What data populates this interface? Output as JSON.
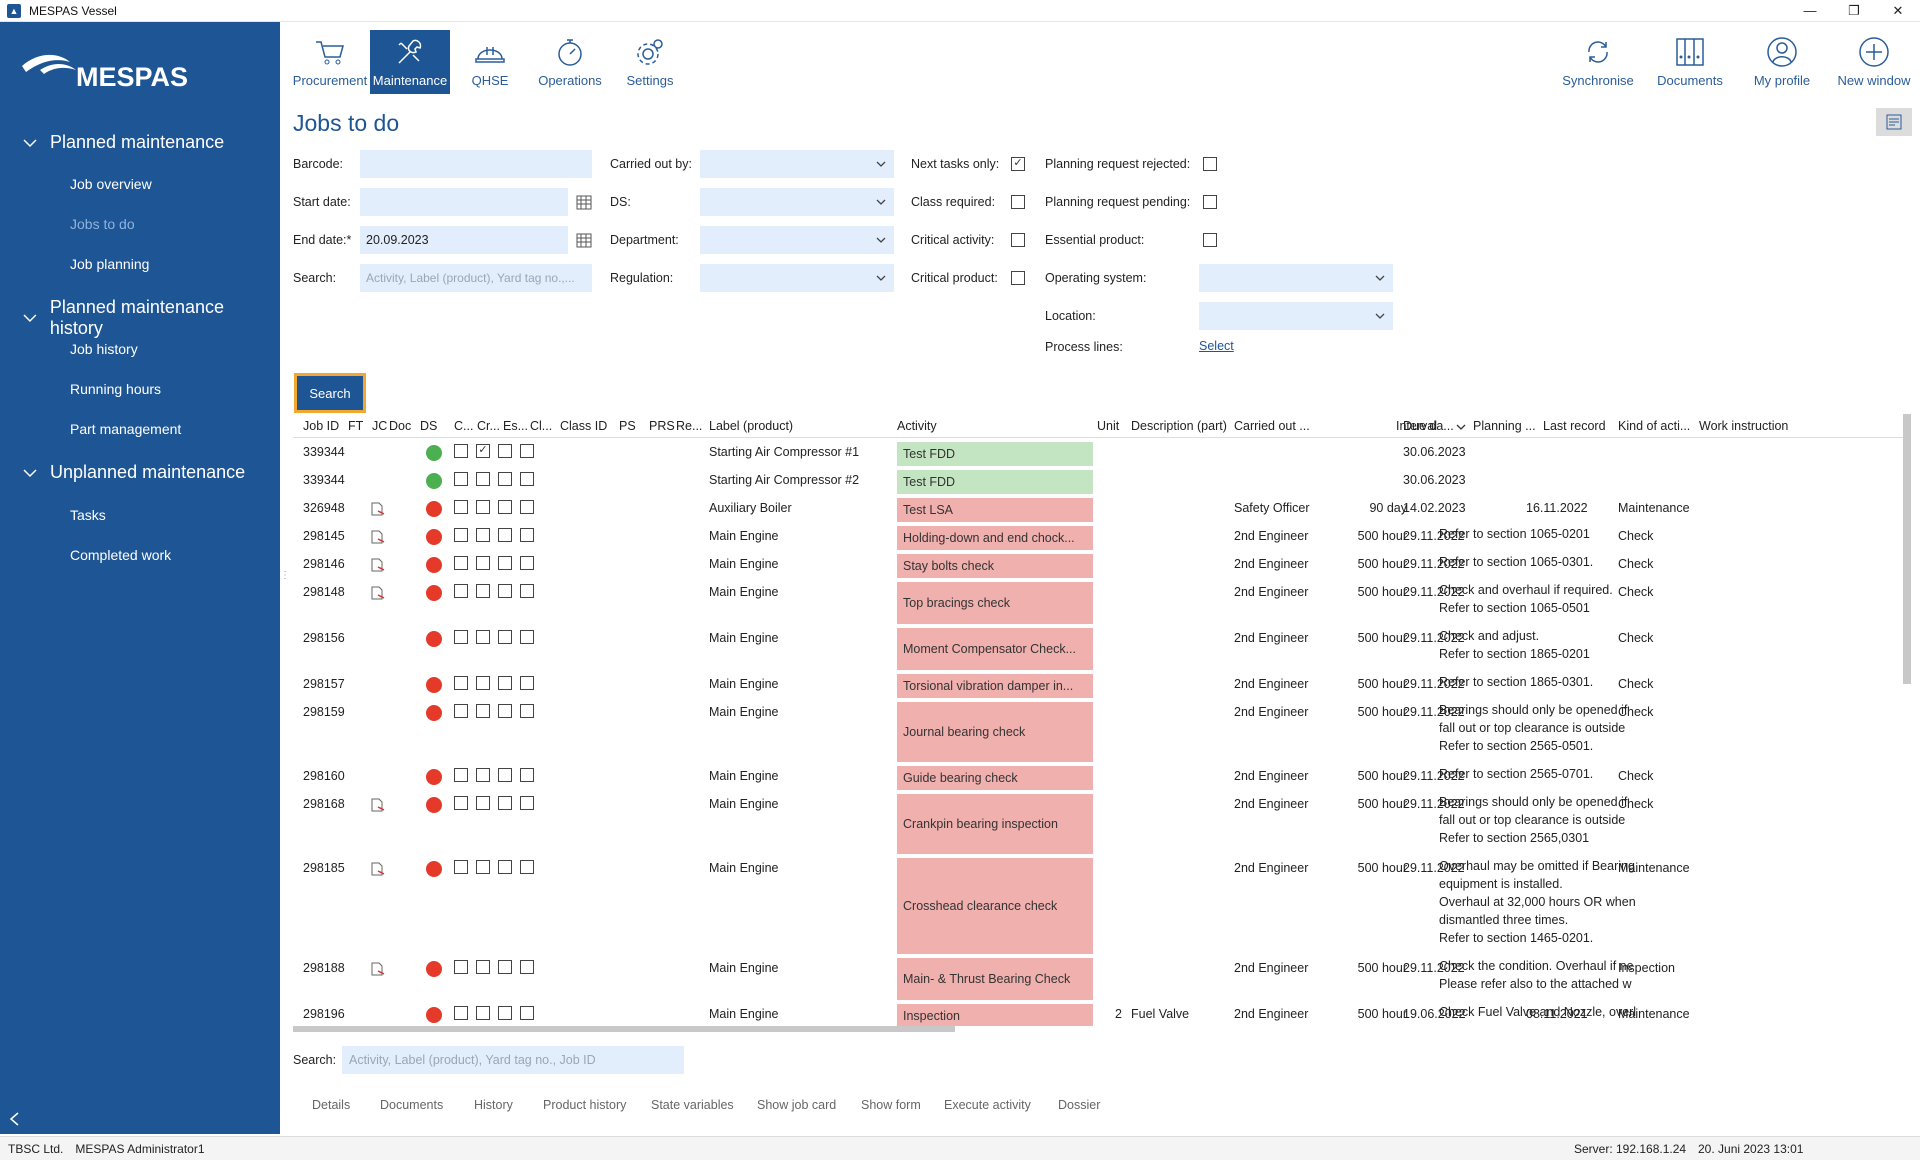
{
  "window": {
    "title": "MESPAS Vessel",
    "controls": [
      "—",
      "❐",
      "✕"
    ]
  },
  "sidebar": {
    "brand": "MESPAS",
    "sections": [
      {
        "label": "Planned maintenance",
        "items": [
          "Job overview",
          "Jobs to do",
          "Job planning"
        ]
      },
      {
        "label": "Planned maintenance history",
        "items": [
          "Job history",
          "Running hours",
          "Part management"
        ]
      },
      {
        "label": "Unplanned maintenance",
        "items": [
          "Tasks",
          "Completed work"
        ]
      }
    ],
    "active_item": "Jobs to do"
  },
  "topnav": {
    "left": [
      {
        "label": "Procurement",
        "icon": "cart-icon"
      },
      {
        "label": "Maintenance",
        "icon": "wrench-icon",
        "active": true
      },
      {
        "label": "QHSE",
        "icon": "helmet-icon"
      },
      {
        "label": "Operations",
        "icon": "stopwatch-icon"
      },
      {
        "label": "Settings",
        "icon": "gear-icon"
      }
    ],
    "right": [
      {
        "label": "Synchronise",
        "icon": "sync-icon"
      },
      {
        "label": "Documents",
        "icon": "binders-icon"
      },
      {
        "label": "My profile",
        "icon": "user-icon"
      },
      {
        "label": "New window",
        "icon": "plus-circle-icon"
      }
    ]
  },
  "page": {
    "title": "Jobs to do"
  },
  "filters": {
    "barcode_label": "Barcode:",
    "start_date_label": "Start date:",
    "end_date_label": "End date:*",
    "end_date_value": "20.09.2023",
    "search_label": "Search:",
    "search_placeholder": "Activity, Label (product), Yard tag no.,...",
    "carried_out_by_label": "Carried out by:",
    "ds_label": "DS:",
    "department_label": "Department:",
    "regulation_label": "Regulation:",
    "next_tasks_only_label": "Next tasks only:",
    "class_required_label": "Class required:",
    "critical_activity_label": "Critical activity:",
    "critical_product_label": "Critical product:",
    "planning_request_rejected_label": "Planning request rejected:",
    "planning_request_pending_label": "Planning request pending:",
    "essential_product_label": "Essential product:",
    "operating_system_label": "Operating system:",
    "location_label": "Location:",
    "process_lines_label": "Process lines:",
    "process_lines_link": "Select",
    "search_button": "Search",
    "next_tasks_only_checked": true
  },
  "grid": {
    "headers": [
      "Job ID",
      "FT",
      "JC",
      "Doc",
      "DS",
      "C...",
      "Cr...",
      "Es...",
      "Cl...",
      "Class ID",
      "PS",
      "PRS",
      "Re...",
      "Label (product)",
      "Activity",
      "Unit",
      "Description (part)",
      "Carried out ...",
      "Interval",
      "Due da...",
      "Planning ...",
      "Last record",
      "Kind of acti...",
      "Work instruction"
    ],
    "rows": [
      {
        "job_id": "339344",
        "doc": false,
        "ds": "green",
        "cr": true,
        "label": "Starting Air Compressor #1",
        "activity": "Test FDD",
        "act_color": "green",
        "unit": "",
        "part": "",
        "carried": "",
        "interval": "",
        "due": "30.06.2023",
        "last": "",
        "kind": "",
        "wi": ""
      },
      {
        "job_id": "339344",
        "doc": false,
        "ds": "green",
        "cr": false,
        "label": "Starting Air Compressor #2",
        "activity": "Test FDD",
        "act_color": "green",
        "unit": "",
        "part": "",
        "carried": "",
        "interval": "",
        "due": "30.06.2023",
        "last": "",
        "kind": "",
        "wi": ""
      },
      {
        "job_id": "326948",
        "doc": true,
        "ds": "red",
        "cr": false,
        "label": "Auxiliary Boiler",
        "activity": "Test LSA",
        "act_color": "red",
        "unit": "",
        "part": "",
        "carried": "Safety Officer",
        "interval": "90 day",
        "due": "14.02.2023",
        "last": "16.11.2022",
        "kind": "Maintenance",
        "wi": ""
      },
      {
        "job_id": "298145",
        "doc": true,
        "ds": "red",
        "cr": false,
        "label": "Main Engine",
        "activity": "Holding-down and end chock...",
        "act_color": "red",
        "unit": "",
        "part": "",
        "carried": "2nd Engineer",
        "interval": "500 hour",
        "due": "29.11.2022",
        "last": "",
        "kind": "Check",
        "wi": "Refer to section 1065-0201"
      },
      {
        "job_id": "298146",
        "doc": true,
        "ds": "red",
        "cr": false,
        "label": "Main Engine",
        "activity": "Stay bolts check",
        "act_color": "red",
        "unit": "",
        "part": "",
        "carried": "2nd Engineer",
        "interval": "500 hour",
        "due": "29.11.2022",
        "last": "",
        "kind": "Check",
        "wi": "Refer to section 1065-0301."
      },
      {
        "job_id": "298148",
        "doc": true,
        "ds": "red",
        "cr": false,
        "label": "Main Engine",
        "activity": "Top bracings check",
        "act_color": "red",
        "unit": "",
        "part": "",
        "carried": "2nd Engineer",
        "interval": "500 hour",
        "due": "29.11.2022",
        "last": "",
        "kind": "Check",
        "wi": "Check and overhaul if required.\nRefer to section 1065-0501"
      },
      {
        "job_id": "298156",
        "doc": false,
        "ds": "red",
        "cr": false,
        "label": "Main Engine",
        "activity": "Moment Compensator Check...",
        "act_color": "red",
        "unit": "",
        "part": "",
        "carried": "2nd Engineer",
        "interval": "500 hour",
        "due": "29.11.2022",
        "last": "",
        "kind": "Check",
        "wi": "Check and adjust.\nRefer to section 1865-0201"
      },
      {
        "job_id": "298157",
        "doc": false,
        "ds": "red",
        "cr": false,
        "label": "Main Engine",
        "activity": "Torsional vibration damper in...",
        "act_color": "red",
        "unit": "",
        "part": "",
        "carried": "2nd Engineer",
        "interval": "500 hour",
        "due": "29.11.2022",
        "last": "",
        "kind": "Check",
        "wi": "Refer to section 1865-0301."
      },
      {
        "job_id": "298159",
        "doc": false,
        "ds": "red",
        "cr": false,
        "label": "Main Engine",
        "activity": "Journal bearing check",
        "act_color": "red",
        "unit": "",
        "part": "",
        "carried": "2nd Engineer",
        "interval": "500 hour",
        "due": "29.11.2022",
        "last": "",
        "kind": "Check",
        "wi": "Bearings should only be opened if\nfall out or top clearance is outside\nRefer to section 2565-0501."
      },
      {
        "job_id": "298160",
        "doc": false,
        "ds": "red",
        "cr": false,
        "label": "Main Engine",
        "activity": "Guide bearing check",
        "act_color": "red",
        "unit": "",
        "part": "",
        "carried": "2nd Engineer",
        "interval": "500 hour",
        "due": "29.11.2022",
        "last": "",
        "kind": "Check",
        "wi": "Refer to section 2565-0701."
      },
      {
        "job_id": "298168",
        "doc": true,
        "ds": "red",
        "cr": false,
        "label": "Main Engine",
        "activity": "Crankpin bearing inspection",
        "act_color": "red",
        "unit": "",
        "part": "",
        "carried": "2nd Engineer",
        "interval": "500 hour",
        "due": "29.11.2022",
        "last": "",
        "kind": "Check",
        "wi": "Bearings should only be opened if\nfall out or top clearance is outside\nRefer to section 2565,0301"
      },
      {
        "job_id": "298185",
        "doc": true,
        "ds": "red",
        "cr": false,
        "label": "Main Engine",
        "activity": "Crosshead clearance check",
        "act_color": "red",
        "unit": "",
        "part": "",
        "carried": "2nd Engineer",
        "interval": "500 hour",
        "due": "29.11.2022",
        "last": "",
        "kind": "Maintenance",
        "wi": "Overhaul may be omitted if Bearing\nequipment is installed.\nOverhaul at 32,000 hours OR when\ndismantled three times.\nRefer to section 1465-0201."
      },
      {
        "job_id": "298188",
        "doc": true,
        "ds": "red",
        "cr": false,
        "label": "Main Engine",
        "activity": "Main- & Thrust Bearing Check",
        "act_color": "red",
        "unit": "",
        "part": "",
        "carried": "2nd Engineer",
        "interval": "500 hour",
        "due": "29.11.2022",
        "last": "",
        "kind": "Inspection",
        "wi": "Check the condition. Overhaul if ne\nPlease refer also to the attached w"
      },
      {
        "job_id": "298196",
        "doc": false,
        "ds": "red",
        "cr": false,
        "label": "Main Engine",
        "activity": "Inspection",
        "act_color": "red",
        "unit": "2",
        "part": "Fuel Valve",
        "carried": "2nd Engineer",
        "interval": "500 hour",
        "due": "19.06.2022",
        "last": "08.11.2021",
        "kind": "Maintenance",
        "wi": "Check Fuel Valve and Nozzle, overl"
      }
    ]
  },
  "bottom": {
    "search_label": "Search:",
    "search_placeholder": "Activity, Label (product), Yard tag no., Job ID",
    "tabs": [
      "Details",
      "Documents",
      "History",
      "Product history",
      "State variables",
      "Show job card",
      "Show form",
      "Execute activity",
      "Dossier"
    ]
  },
  "status": {
    "company": "TBSC Ltd.",
    "user": "MESPAS Administrator1",
    "server": "Server: 192.168.1.24",
    "datetime": "20. Juni 2023 13:01"
  },
  "colors": {
    "brand": "#1e5594",
    "green_dot": "#4caf50",
    "red_dot": "#e53929",
    "act_green": "#c3e5c1",
    "act_red": "#efb0ae",
    "focus": "#f0a830"
  }
}
